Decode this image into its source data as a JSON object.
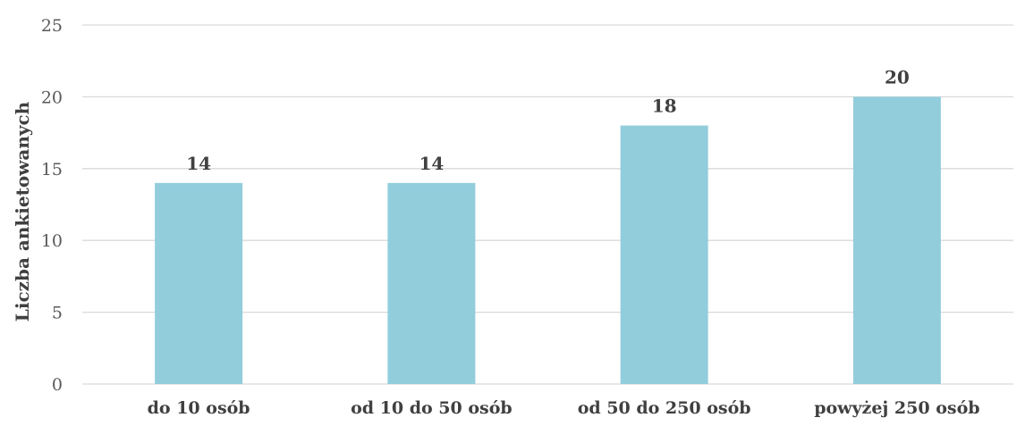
{
  "chart_data": {
    "type": "bar",
    "title": "",
    "xlabel": "",
    "ylabel": "Liczba ankietowanych",
    "categories": [
      "do 10 osób",
      "od 10 do 50 osób",
      "od 50 do 250 osób",
      "powyżej 250 osób"
    ],
    "values": [
      14,
      14,
      18,
      20
    ],
    "ylim": [
      0,
      25
    ],
    "yticks": [
      0,
      5,
      10,
      15,
      20,
      25
    ],
    "grid": true,
    "legend": "none",
    "bar_color": "#92cddc",
    "data_labels": true
  }
}
